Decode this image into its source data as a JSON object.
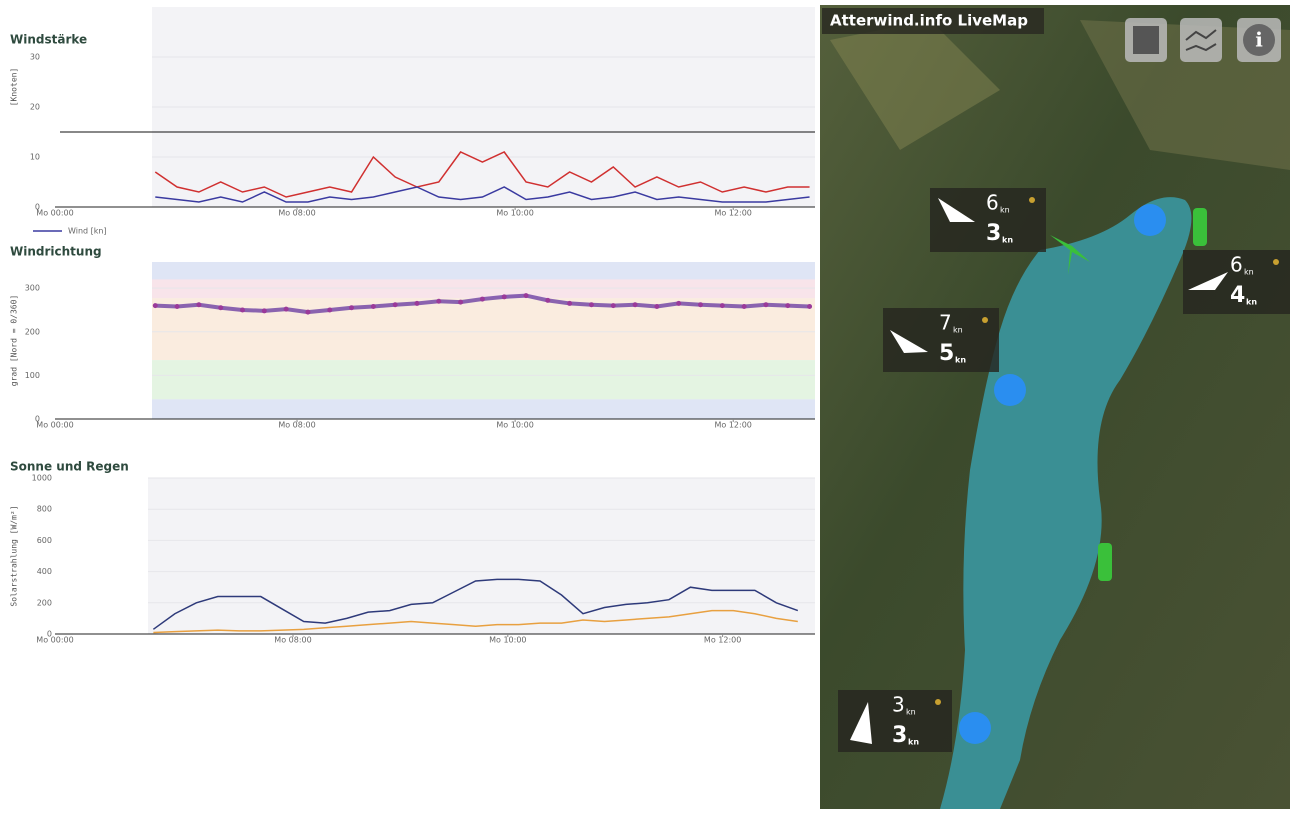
{
  "chart_data": [
    {
      "type": "line",
      "title": "Windstärke",
      "y_label": "[Knoten]",
      "x": [
        6.7,
        6.9,
        7.1,
        7.3,
        7.5,
        7.7,
        7.9,
        8.1,
        8.3,
        8.5,
        8.7,
        8.9,
        9.1,
        9.3,
        9.5,
        9.7,
        9.9,
        10.1,
        10.3,
        10.5,
        10.7,
        10.9,
        11.1,
        11.3,
        11.5,
        11.7,
        11.9,
        12.1,
        12.3,
        12.5,
        12.7
      ],
      "series": [
        {
          "color": "#d03030",
          "values": [
            7,
            4,
            3,
            5,
            3,
            4,
            2,
            3,
            4,
            3,
            10,
            6,
            4,
            5,
            11,
            9,
            11,
            5,
            4,
            7,
            5,
            8,
            4,
            6,
            4,
            5,
            3,
            4,
            3,
            4,
            4
          ]
        },
        {
          "name": "Wind [kn]",
          "color": "#3a3aa0",
          "values": [
            2,
            1.5,
            1,
            2,
            1,
            3,
            1,
            1,
            2,
            1.5,
            2,
            3,
            4,
            2,
            1.5,
            2,
            4,
            1.5,
            2,
            3,
            1.5,
            2,
            3,
            1.5,
            2,
            1.5,
            1,
            1,
            1,
            1.5,
            2
          ]
        }
      ],
      "reference_line": 15,
      "xlim": [
        6.67,
        12.75
      ],
      "xticks": [
        {
          "value": 8,
          "label": "Mo 08:00"
        },
        {
          "value": 10,
          "label": "Mo 10:00"
        },
        {
          "value": 12,
          "label": "Mo 12:00"
        }
      ],
      "x_origin_label": "Mo 00:00",
      "ylim": [
        0,
        40
      ],
      "yticks": [
        0,
        10,
        20,
        30
      ],
      "grid": true
    },
    {
      "type": "scatter",
      "title": "Windrichtung",
      "y_label": "grad [Nord = 0/360]",
      "x": [
        6.7,
        6.9,
        7.1,
        7.3,
        7.5,
        7.7,
        7.9,
        8.1,
        8.3,
        8.5,
        8.7,
        8.9,
        9.1,
        9.3,
        9.5,
        9.7,
        9.9,
        10.1,
        10.3,
        10.5,
        10.7,
        10.9,
        11.1,
        11.3,
        11.5,
        11.7,
        11.9,
        12.1,
        12.3,
        12.5,
        12.7
      ],
      "values": [
        260,
        258,
        262,
        255,
        250,
        248,
        252,
        245,
        250,
        255,
        258,
        262,
        265,
        270,
        268,
        275,
        280,
        283,
        272,
        265,
        262,
        260,
        262,
        258,
        265,
        262,
        260,
        258,
        262,
        260,
        258
      ],
      "color": "#5a2a9a",
      "bands": [
        {
          "from": 320,
          "to": 360,
          "color": "#dfe5f5"
        },
        {
          "from": 277,
          "to": 320,
          "color": "#f8e4ea"
        },
        {
          "from": 135,
          "to": 277,
          "color": "#faecdf"
        },
        {
          "from": 45,
          "to": 135,
          "color": "#e4f4e2"
        },
        {
          "from": 0,
          "to": 45,
          "color": "#dfe5f5"
        }
      ],
      "xlim": [
        6.67,
        12.75
      ],
      "xticks": [
        {
          "value": 8,
          "label": "Mo 08:00"
        },
        {
          "value": 10,
          "label": "Mo 10:00"
        },
        {
          "value": 12,
          "label": "Mo 12:00"
        }
      ],
      "x_origin_label": "Mo 00:00",
      "ylim": [
        0,
        360
      ],
      "yticks": [
        0,
        100,
        200,
        300
      ],
      "grid": true
    },
    {
      "type": "line",
      "title": "Sonne und Regen",
      "y_label": "Solarstrahlung [W/m²]",
      "x": [
        6.7,
        6.9,
        7.1,
        7.3,
        7.5,
        7.7,
        7.9,
        8.1,
        8.3,
        8.5,
        8.7,
        8.9,
        9.1,
        9.3,
        9.5,
        9.7,
        9.9,
        10.1,
        10.3,
        10.5,
        10.7,
        10.9,
        11.1,
        11.3,
        11.5,
        11.7,
        11.9,
        12.1,
        12.3,
        12.5,
        12.7
      ],
      "series": [
        {
          "color": "#2e3a7a",
          "values": [
            30,
            130,
            200,
            240,
            240,
            240,
            160,
            80,
            70,
            100,
            140,
            150,
            190,
            200,
            270,
            340,
            350,
            350,
            340,
            250,
            130,
            170,
            190,
            200,
            220,
            300,
            280,
            280,
            280,
            200,
            150
          ]
        },
        {
          "color": "#e8a040",
          "values": [
            10,
            15,
            20,
            25,
            20,
            20,
            25,
            30,
            40,
            50,
            60,
            70,
            80,
            70,
            60,
            50,
            60,
            60,
            70,
            70,
            90,
            80,
            90,
            100,
            110,
            130,
            150,
            150,
            130,
            100,
            80
          ]
        }
      ],
      "xlim": [
        6.65,
        12.86
      ],
      "xticks": [
        {
          "value": 8,
          "label": "Mo 08:00"
        },
        {
          "value": 10,
          "label": "Mo 10:00"
        },
        {
          "value": 12,
          "label": "Mo 12:00"
        }
      ],
      "x_origin_label": "Mo 00:00",
      "ylim": [
        0,
        1000
      ],
      "yticks": [
        0,
        200,
        400,
        600,
        800,
        1000
      ],
      "grid": true
    }
  ],
  "map": {
    "title": "Atterwind.info LiveMap",
    "unit": "kn",
    "stations": [
      {
        "gust": 6,
        "wind": 3
      },
      {
        "gust": 6,
        "wind": 4
      },
      {
        "gust": 7,
        "wind": 5
      },
      {
        "gust": 3,
        "wind": 3
      }
    ]
  }
}
